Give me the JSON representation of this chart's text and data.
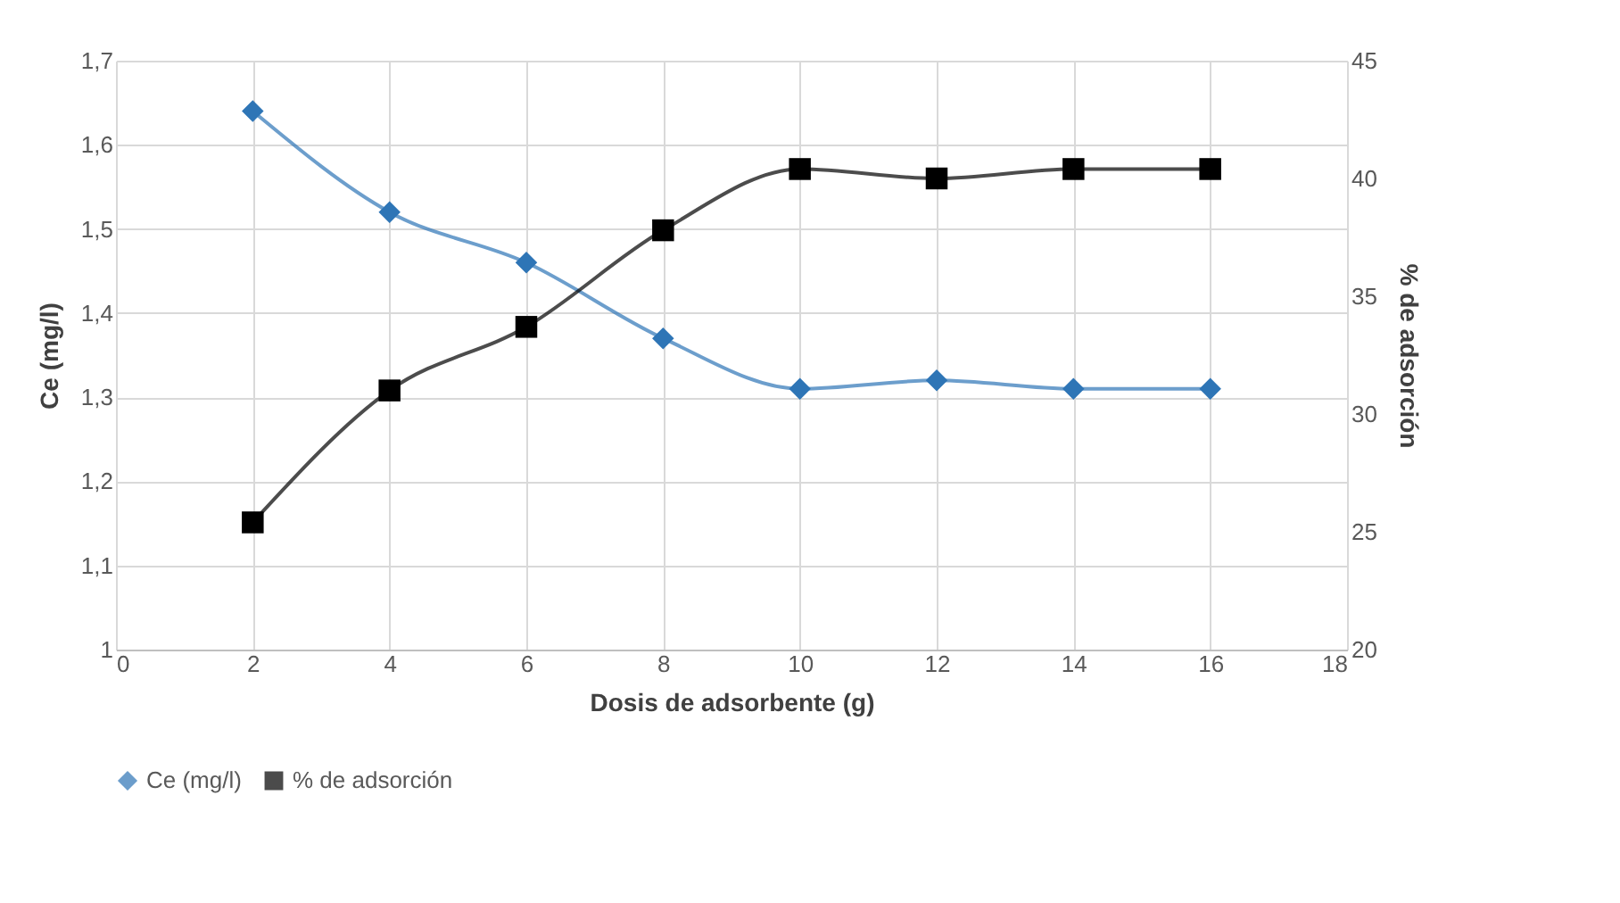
{
  "chart_data": {
    "type": "line",
    "xlabel": "Dosis de adsorbente (g)",
    "ylabel": "Ce (mg/l)",
    "y2label": "% de adsorción",
    "x": [
      2,
      4,
      6,
      8,
      10,
      12,
      14,
      16
    ],
    "series": [
      {
        "name": "Ce (mg/l)",
        "color": "#2e75b6",
        "marker": "diamond",
        "values": [
          1.64,
          1.52,
          1.46,
          1.37,
          1.31,
          1.32,
          1.31,
          1.31
        ]
      },
      {
        "name": "% de adsorción",
        "color": "#000000",
        "marker": "square",
        "axis": "y2",
        "values": [
          25.4,
          31.0,
          33.7,
          37.8,
          40.4,
          40.0,
          40.4,
          40.4
        ]
      }
    ],
    "xlim": [
      0,
      18
    ],
    "xticks": [
      0,
      2,
      4,
      6,
      8,
      10,
      12,
      14,
      16,
      18
    ],
    "ylim": [
      1,
      1.7
    ],
    "yticks": [
      1,
      {
        "value": 1.1,
        "label": "1,1"
      },
      {
        "value": 1.2,
        "label": "1,2"
      },
      {
        "value": 1.3,
        "label": "1,3"
      },
      {
        "value": 1.4,
        "label": "1,4"
      },
      {
        "value": 1.5,
        "label": "1,5"
      },
      {
        "value": 1.6,
        "label": "1,6"
      },
      {
        "value": 1.7,
        "label": "1,7"
      }
    ],
    "y2lim": [
      20,
      45
    ],
    "y2ticks": [
      20,
      25,
      30,
      35,
      40,
      45
    ],
    "grid": true,
    "legend": "bottom",
    "line_style": "solid"
  }
}
